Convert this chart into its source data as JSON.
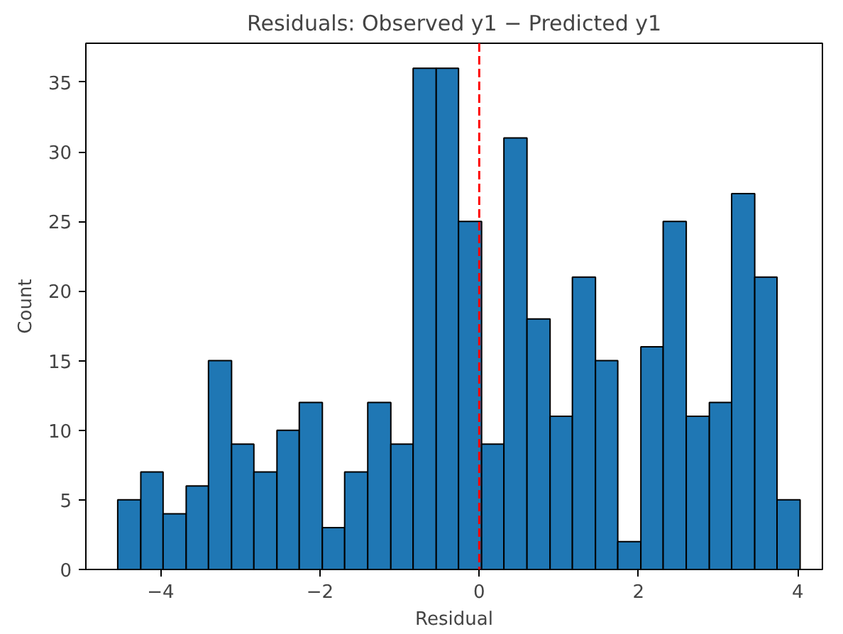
{
  "chart_data": {
    "type": "histogram",
    "title": "Residuals: Observed y1 − Predicted y1",
    "xlabel": "Residual",
    "ylabel": "Count",
    "bins": [
      -4.54,
      -4.25,
      -3.97,
      -3.68,
      -3.4,
      -3.11,
      -2.83,
      -2.54,
      -2.26,
      -1.97,
      -1.69,
      -1.4,
      -1.11,
      -0.83,
      -0.54,
      -0.26,
      0.03,
      0.31,
      0.6,
      0.89,
      1.17,
      1.46,
      1.74,
      2.03,
      2.31,
      2.6,
      2.89,
      3.17,
      3.46,
      3.74,
      4.03
    ],
    "values": [
      5,
      7,
      4,
      6,
      15,
      9,
      7,
      10,
      12,
      3,
      7,
      12,
      9,
      36,
      36,
      25,
      9,
      31,
      18,
      11,
      21,
      15,
      2,
      16,
      25,
      11,
      12,
      27,
      21,
      5
    ],
    "color": "#1f77b4",
    "xlim": [
      -4.94,
      4.31
    ],
    "ylim": [
      0,
      37.8
    ],
    "xticks": [
      {
        "value": -4,
        "label": "−4"
      },
      {
        "value": -2,
        "label": "−2"
      },
      0,
      2,
      4
    ],
    "yticks": [
      0,
      5,
      10,
      15,
      20,
      25,
      30,
      35
    ],
    "ref_lines": [
      {
        "axis": "x",
        "value": 0,
        "color": "#ff0000",
        "line_style": "dashed"
      }
    ],
    "grid": false
  }
}
